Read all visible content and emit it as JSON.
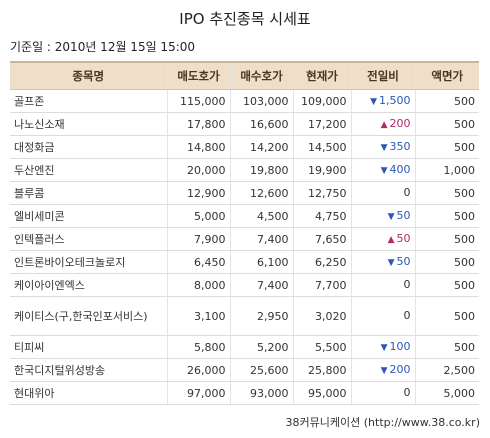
{
  "title": "IPO 추진종목 시세표",
  "base_date": "기준일 : 2010년 12월 15일 15:00",
  "columns": [
    "종목명",
    "매도호가",
    "매수호가",
    "현재가",
    "전일비",
    "액면가"
  ],
  "rows": [
    {
      "name": "골프존",
      "ask": "115,000",
      "bid": "103,000",
      "price": "109,000",
      "dir": "down",
      "change": "1,500",
      "par": "500"
    },
    {
      "name": "나노신소재",
      "ask": "17,800",
      "bid": "16,600",
      "price": "17,200",
      "dir": "up",
      "change": "200",
      "par": "500"
    },
    {
      "name": "대정화금",
      "ask": "14,800",
      "bid": "14,200",
      "price": "14,500",
      "dir": "down",
      "change": "350",
      "par": "500"
    },
    {
      "name": "두산엔진",
      "ask": "20,000",
      "bid": "19,800",
      "price": "19,900",
      "dir": "down",
      "change": "400",
      "par": "1,000"
    },
    {
      "name": "블루콤",
      "ask": "12,900",
      "bid": "12,600",
      "price": "12,750",
      "dir": "flat",
      "change": "0",
      "par": "500"
    },
    {
      "name": "엘비세미콘",
      "ask": "5,000",
      "bid": "4,500",
      "price": "4,750",
      "dir": "down",
      "change": "50",
      "par": "500"
    },
    {
      "name": "인텍플러스",
      "ask": "7,900",
      "bid": "7,400",
      "price": "7,650",
      "dir": "up",
      "change": "50",
      "par": "500"
    },
    {
      "name": "인트론바이오테크놀로지",
      "ask": "6,450",
      "bid": "6,100",
      "price": "6,250",
      "dir": "down",
      "change": "50",
      "par": "500"
    },
    {
      "name": "케이아이엔엑스",
      "ask": "8,000",
      "bid": "7,400",
      "price": "7,700",
      "dir": "flat",
      "change": "0",
      "par": "500"
    },
    {
      "name": "케이티스(구,한국인포서비스)",
      "ask": "3,100",
      "bid": "2,950",
      "price": "3,020",
      "dir": "flat",
      "change": "0",
      "par": "500",
      "tall": true
    },
    {
      "name": "티피씨",
      "ask": "5,800",
      "bid": "5,200",
      "price": "5,500",
      "dir": "down",
      "change": "100",
      "par": "500"
    },
    {
      "name": "한국디지털위성방송",
      "ask": "26,000",
      "bid": "25,600",
      "price": "25,800",
      "dir": "down",
      "change": "200",
      "par": "2,500"
    },
    {
      "name": "현대위아",
      "ask": "97,000",
      "bid": "93,000",
      "price": "95,000",
      "dir": "flat",
      "change": "0",
      "par": "5,000"
    }
  ],
  "arrows": {
    "down": "▼",
    "up": "▲",
    "flat": ""
  },
  "colors": {
    "header_bg": "#f0dfc8",
    "down": "#2c57b6",
    "up": "#b4276b"
  },
  "source": "38커뮤니케이션 (http://www.38.co.kr)"
}
